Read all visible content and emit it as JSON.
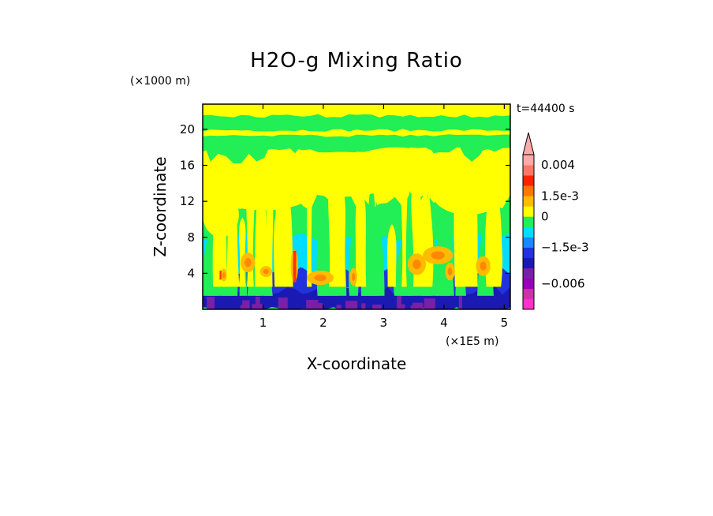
{
  "chart_data": {
    "type": "heatmap",
    "title": "H2O-g Mixing Ratio",
    "xlabel": "X-coordinate",
    "ylabel": "Z-coordinate",
    "x_scale_label": "(×1E5 m)",
    "y_scale_label": "(×1000 m)",
    "time_label": "t=44400 s",
    "xlim": [
      0,
      5.1
    ],
    "ylim": [
      0,
      22.8
    ],
    "x_ticks": [
      1,
      2,
      3,
      4,
      5
    ],
    "y_ticks": [
      4,
      8,
      12,
      16,
      20
    ],
    "colorbar": {
      "labels": [
        {
          "text": "0.004",
          "value": 0.004
        },
        {
          "text": "1.5e-3",
          "value": 0.0015
        },
        {
          "text": "0",
          "value": 0
        },
        {
          "text": "−1.5e-3",
          "value": -0.0015
        },
        {
          "text": "−0.006",
          "value": -0.006
        }
      ],
      "colors": [
        "#ff33cc",
        "#cc33aa",
        "#9900bb",
        "#7a1fa8",
        "#1a1ab3",
        "#2233dd",
        "#1a88ff",
        "#00ddff",
        "#22ee55",
        "#ffff00",
        "#ffbb00",
        "#ff7700",
        "#ff2200",
        "#ff7766",
        "#ffaaaa"
      ],
      "arrow_top": true
    },
    "field_palette": {
      "purple": "#7a1fa8",
      "dark_blue": "#1a1ab3",
      "blue": "#2233dd",
      "mid_blue": "#1a88ff",
      "cyan": "#00ddff",
      "green": "#22ee55",
      "yellow": "#ffff00",
      "orange": "#ffbb00",
      "dark_orange": "#ff8800",
      "red": "#ff3300"
    },
    "regions": {
      "z_purple_top": 0.8,
      "z_blue_top": 4.5,
      "z_cyan_top": 8.0,
      "z_green_top": 12.0,
      "z_yellow_top": 17.5,
      "z_stratosphere_bands": [
        19.3,
        20.3,
        21.5
      ]
    }
  }
}
